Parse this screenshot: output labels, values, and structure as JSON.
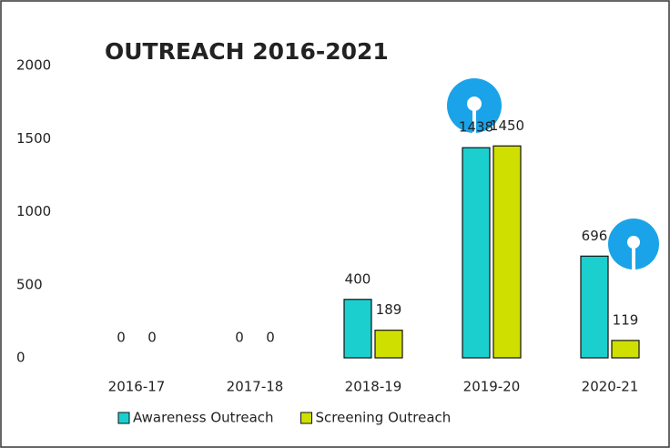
{
  "chart_data": {
    "type": "bar",
    "title": "OUTREACH 2016-2021",
    "categories": [
      "2016-17",
      "2017-18",
      "2018-19",
      "2019-20",
      "2020-21"
    ],
    "series": [
      {
        "name": "Awareness Outreach",
        "color": "#1ccfcf",
        "values": [
          0,
          0,
          400,
          1438,
          696
        ]
      },
      {
        "name": "Screening Outreach",
        "color": "#cfe000",
        "values": [
          0,
          0,
          189,
          1450,
          119
        ]
      }
    ],
    "ylim": [
      0,
      2000
    ],
    "yticks": [
      0,
      500,
      1000,
      1500,
      2000
    ],
    "grid": false,
    "legend": "bottom"
  }
}
